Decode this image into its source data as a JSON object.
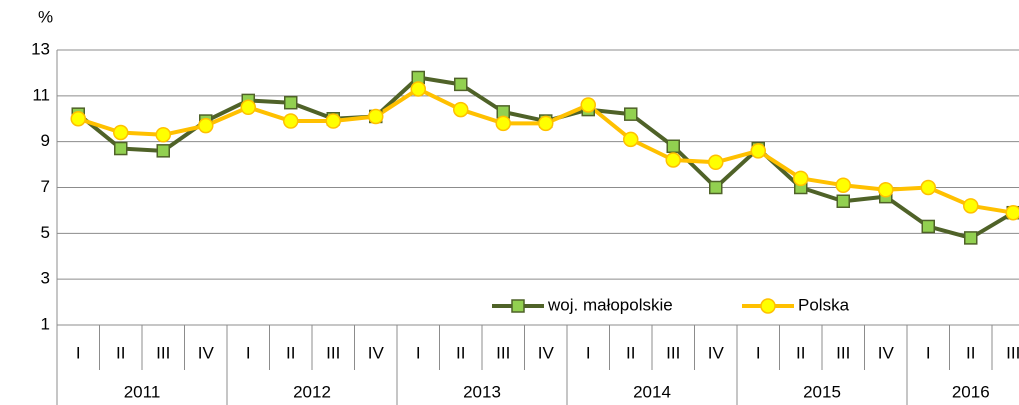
{
  "chart_data": {
    "type": "line",
    "y_label": "%",
    "categories": [
      "I",
      "II",
      "III",
      "IV",
      "I",
      "II",
      "III",
      "IV",
      "I",
      "II",
      "III",
      "IV",
      "I",
      "II",
      "III",
      "IV",
      "I",
      "II",
      "III",
      "IV",
      "I",
      "II",
      "III"
    ],
    "years": [
      "2011",
      "2012",
      "2013",
      "2014",
      "2015",
      "2016"
    ],
    "series": [
      {
        "name": "woj. małopolskie",
        "color": "#4f6228",
        "marker": "square",
        "marker_color": "#92d050",
        "values": [
          10.2,
          8.7,
          8.6,
          9.9,
          10.8,
          10.7,
          10.0,
          10.1,
          11.8,
          11.5,
          10.3,
          9.9,
          10.4,
          10.2,
          8.8,
          7.0,
          8.7,
          7.0,
          6.4,
          6.6,
          5.3,
          4.8,
          5.9
        ]
      },
      {
        "name": "Polska",
        "color": "#ffc000",
        "marker": "circle",
        "marker_color": "#ffff00",
        "values": [
          10.0,
          9.4,
          9.3,
          9.7,
          10.5,
          9.9,
          9.9,
          10.1,
          11.3,
          10.4,
          9.8,
          9.8,
          10.6,
          9.1,
          8.2,
          8.1,
          8.6,
          7.4,
          7.1,
          6.9,
          7.0,
          6.2,
          5.9
        ]
      }
    ],
    "ylim": [
      1,
      13
    ],
    "yticks": [
      1,
      3,
      5,
      7,
      9,
      11,
      13
    ],
    "grid": true,
    "legend": "bottom"
  }
}
